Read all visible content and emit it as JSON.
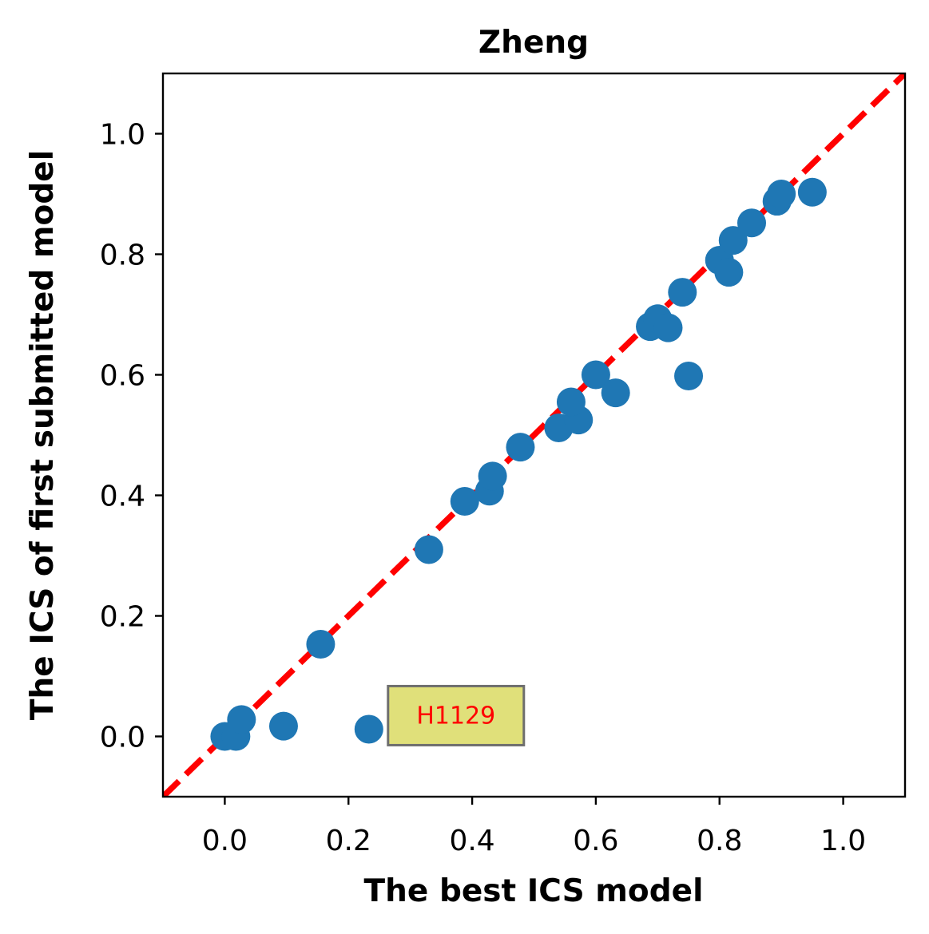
{
  "chart_data": {
    "type": "scatter",
    "title": "Zheng",
    "xlabel": "The best ICS model",
    "ylabel": "The ICS of first submitted model",
    "xlim": [
      -0.1,
      1.1
    ],
    "ylim": [
      -0.1,
      1.1
    ],
    "xticks": [
      "0.0",
      "0.2",
      "0.4",
      "0.6",
      "0.8",
      "1.0"
    ],
    "yticks": [
      "0.0",
      "0.2",
      "0.4",
      "0.6",
      "0.8",
      "1.0"
    ],
    "tick_values": [
      0.0,
      0.2,
      0.4,
      0.6,
      0.8,
      1.0
    ],
    "grid": false,
    "legend": "none",
    "point_color": "#1f77b4",
    "reference_line": {
      "style": "dashed",
      "color": "#ff0000",
      "from": [
        -0.1,
        -0.1
      ],
      "to": [
        1.1,
        1.1
      ]
    },
    "annotation": {
      "text": "H1129",
      "x": 0.233,
      "y": 0.012,
      "text_color": "#ff0000",
      "box_color": "#e0e07a"
    },
    "points": [
      [
        0.0,
        0.0
      ],
      [
        0.018,
        0.0
      ],
      [
        0.027,
        0.028
      ],
      [
        0.095,
        0.017
      ],
      [
        0.233,
        0.012
      ],
      [
        0.155,
        0.153
      ],
      [
        0.33,
        0.31
      ],
      [
        0.388,
        0.39
      ],
      [
        0.428,
        0.407
      ],
      [
        0.433,
        0.432
      ],
      [
        0.478,
        0.48
      ],
      [
        0.54,
        0.512
      ],
      [
        0.572,
        0.525
      ],
      [
        0.56,
        0.555
      ],
      [
        0.6,
        0.6
      ],
      [
        0.632,
        0.57
      ],
      [
        0.75,
        0.598
      ],
      [
        0.688,
        0.68
      ],
      [
        0.7,
        0.693
      ],
      [
        0.717,
        0.678
      ],
      [
        0.74,
        0.737
      ],
      [
        0.8,
        0.79
      ],
      [
        0.815,
        0.77
      ],
      [
        0.822,
        0.823
      ],
      [
        0.852,
        0.852
      ],
      [
        0.893,
        0.888
      ],
      [
        0.9,
        0.9
      ],
      [
        0.95,
        0.903
      ]
    ]
  }
}
